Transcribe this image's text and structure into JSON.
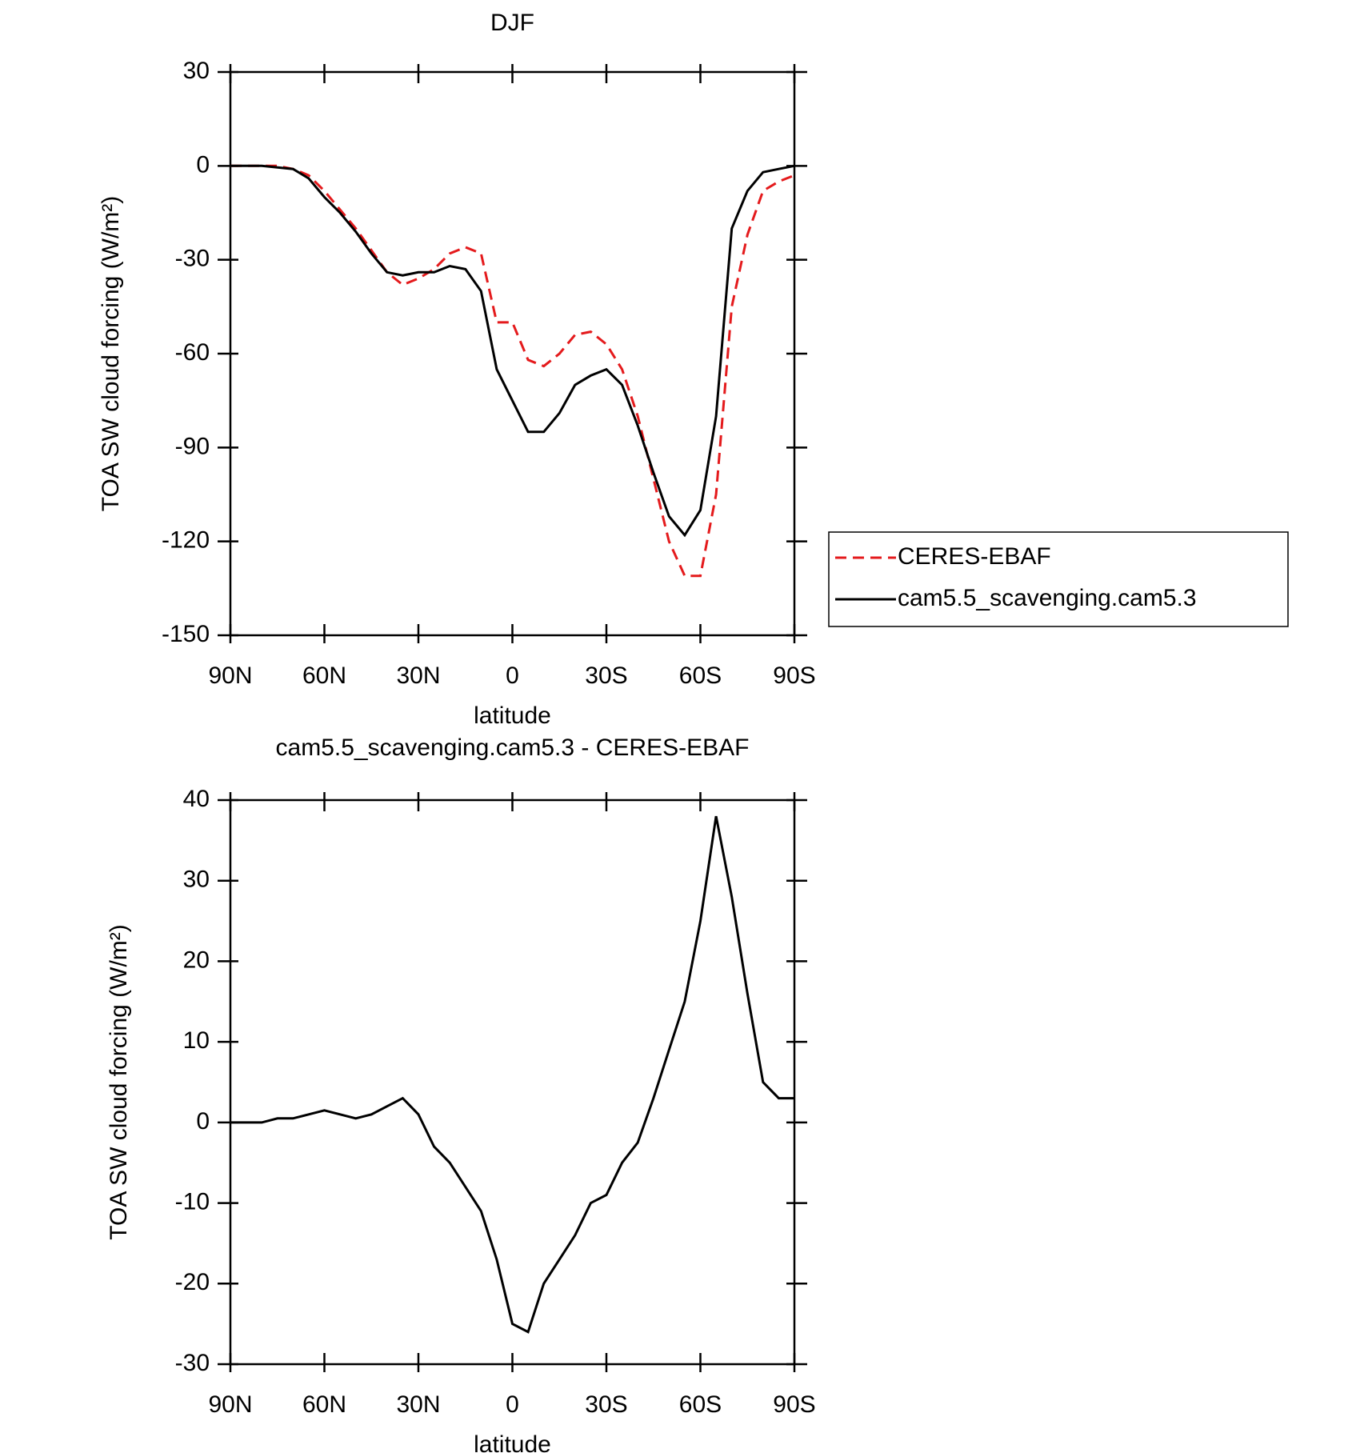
{
  "chart_data": [
    {
      "type": "line",
      "title": "DJF",
      "xlabel": "latitude",
      "ylabel": "TOA SW cloud forcing (W/m²)",
      "x": [
        90,
        85,
        80,
        75,
        70,
        65,
        60,
        55,
        50,
        45,
        40,
        35,
        30,
        25,
        20,
        15,
        10,
        5,
        0,
        -5,
        -10,
        -15,
        -20,
        -25,
        -30,
        -35,
        -40,
        -45,
        -50,
        -55,
        -60,
        -65,
        -70,
        -75,
        -80,
        -85,
        -90
      ],
      "series": [
        {
          "name": "CERES-EBAF",
          "color": "#e41a1c",
          "dash": true,
          "values": [
            0,
            0,
            0,
            0,
            -1,
            -3,
            -8,
            -14,
            -20,
            -27,
            -34,
            -38,
            -36,
            -33,
            -28,
            -26,
            -28,
            -50,
            -50,
            -62,
            -64,
            -60,
            -54,
            -53,
            -57,
            -65,
            -80,
            -100,
            -120,
            -131,
            -131,
            -105,
            -45,
            -22,
            -8,
            -5,
            -3
          ]
        },
        {
          "name": "cam5.5_scavenging.cam5.3",
          "color": "#000000",
          "dash": false,
          "values": [
            0,
            0,
            0,
            -0.5,
            -1,
            -4,
            -10,
            -15,
            -21,
            -28,
            -34,
            -35,
            -34,
            -34,
            -32,
            -33,
            -40,
            -65,
            -75,
            -85,
            -85,
            -79,
            -70,
            -67,
            -65,
            -70,
            -83,
            -98,
            -112,
            -118,
            -110,
            -80,
            -20,
            -8,
            -2,
            -1,
            0
          ]
        }
      ],
      "xlim": [
        90,
        -90
      ],
      "xticks": [
        {
          "value": 90,
          "label": "90N"
        },
        {
          "value": 60,
          "label": "60N"
        },
        {
          "value": 30,
          "label": "30N"
        },
        0,
        {
          "value": -30,
          "label": "30S"
        },
        {
          "value": -60,
          "label": "60S"
        },
        {
          "value": -90,
          "label": "90S"
        }
      ],
      "ylim": [
        -150,
        30
      ],
      "yticks": [
        30,
        0,
        -30,
        -60,
        -90,
        -120,
        -150
      ],
      "legend": "outside-right"
    },
    {
      "type": "line",
      "title": "cam5.5_scavenging.cam5.3 - CERES-EBAF",
      "xlabel": "latitude",
      "ylabel": "TOA SW cloud forcing (W/m²)",
      "x": [
        90,
        85,
        80,
        75,
        70,
        65,
        60,
        55,
        50,
        45,
        40,
        35,
        30,
        25,
        20,
        15,
        10,
        5,
        0,
        -5,
        -10,
        -15,
        -20,
        -25,
        -30,
        -35,
        -40,
        -45,
        -50,
        -55,
        -60,
        -65,
        -70,
        -75,
        -80,
        -85,
        -90
      ],
      "series": [
        {
          "color": "#000000",
          "dash": false,
          "values": [
            0,
            0,
            0,
            0.5,
            0.5,
            1,
            1.5,
            1,
            0.5,
            1,
            2,
            3,
            1,
            -3,
            -5,
            -8,
            -11,
            -17,
            -25,
            -26,
            -20,
            -17,
            -14,
            -10,
            -9,
            -5,
            -2.5,
            3,
            9,
            15,
            25,
            38,
            28,
            16,
            5,
            3,
            3
          ]
        }
      ],
      "xlim": [
        90,
        -90
      ],
      "xticks": [
        {
          "value": 90,
          "label": "90N"
        },
        {
          "value": 60,
          "label": "60N"
        },
        {
          "value": 30,
          "label": "30N"
        },
        0,
        {
          "value": -30,
          "label": "30S"
        },
        {
          "value": -60,
          "label": "60S"
        },
        {
          "value": -90,
          "label": "90S"
        }
      ],
      "ylim": [
        -30,
        40
      ],
      "yticks": [
        40,
        30,
        20,
        10,
        0,
        -10,
        -20,
        -30
      ]
    }
  ]
}
